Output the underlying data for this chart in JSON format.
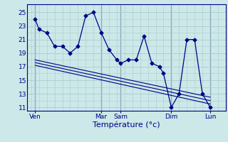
{
  "title": "Température (°c)",
  "background_color": "#cce8e8",
  "grid_color": "#aacccc",
  "line_color": "#000088",
  "ylim": [
    10.5,
    26.2
  ],
  "yticks": [
    11,
    13,
    15,
    17,
    19,
    21,
    23,
    25
  ],
  "x_day_labels": [
    "Ven",
    "Mar",
    "Sam",
    "Dim",
    "Lun"
  ],
  "x_day_positions": [
    0.5,
    9,
    11.5,
    18,
    23
  ],
  "xlim": [
    -0.5,
    25
  ],
  "series": [
    {
      "x": [
        0.5,
        1,
        2,
        3,
        4,
        5,
        6,
        7,
        8,
        9,
        10,
        11,
        11.5,
        12.5,
        13.5,
        14.5,
        15.5,
        16.5,
        17,
        18,
        19,
        20,
        21,
        22,
        23
      ],
      "y": [
        24,
        22.5,
        22,
        20,
        20,
        19,
        20,
        24.5,
        25,
        22,
        19.5,
        18,
        17.5,
        18,
        18,
        21.5,
        17.5,
        17,
        16,
        11,
        13,
        21,
        21,
        13,
        11
      ],
      "marker": "D",
      "markersize": 2.5
    },
    {
      "x": [
        0.5,
        23
      ],
      "y": [
        18,
        12.5
      ],
      "marker": null
    },
    {
      "x": [
        0.5,
        23
      ],
      "y": [
        17.2,
        11.5
      ],
      "marker": null
    },
    {
      "x": [
        0.5,
        23
      ],
      "y": [
        17.6,
        12.0
      ],
      "marker": null
    }
  ]
}
